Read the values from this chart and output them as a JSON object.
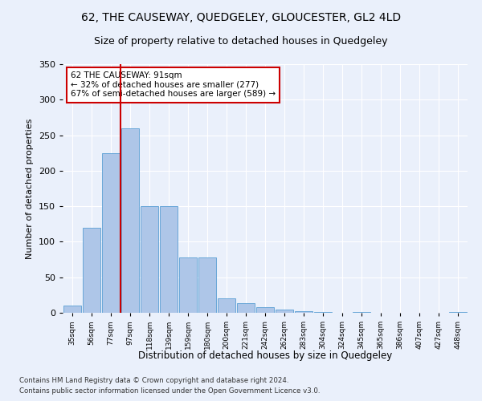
{
  "title1": "62, THE CAUSEWAY, QUEDGELEY, GLOUCESTER, GL2 4LD",
  "title2": "Size of property relative to detached houses in Quedgeley",
  "xlabel": "Distribution of detached houses by size in Quedgeley",
  "ylabel": "Number of detached properties",
  "annotation_title": "62 THE CAUSEWAY: 91sqm",
  "annotation_line1": "← 32% of detached houses are smaller (277)",
  "annotation_line2": "67% of semi-detached houses are larger (589) →",
  "footer1": "Contains HM Land Registry data © Crown copyright and database right 2024.",
  "footer2": "Contains public sector information licensed under the Open Government Licence v3.0.",
  "categories": [
    "35sqm",
    "56sqm",
    "77sqm",
    "97sqm",
    "118sqm",
    "139sqm",
    "159sqm",
    "180sqm",
    "200sqm",
    "221sqm",
    "242sqm",
    "262sqm",
    "283sqm",
    "304sqm",
    "324sqm",
    "345sqm",
    "365sqm",
    "386sqm",
    "407sqm",
    "427sqm",
    "448sqm"
  ],
  "values": [
    10,
    120,
    225,
    260,
    150,
    150,
    78,
    78,
    20,
    13,
    8,
    4,
    2,
    1,
    0,
    1,
    0,
    0,
    0,
    0,
    1
  ],
  "bar_color": "#aec6e8",
  "bar_edge_color": "#5a9fd4",
  "vline_x": 2.5,
  "vline_color": "#cc0000",
  "ylim": [
    0,
    350
  ],
  "yticks": [
    0,
    50,
    100,
    150,
    200,
    250,
    300,
    350
  ],
  "bg_color": "#eaf0fb",
  "grid_color": "#ffffff",
  "annotation_box_color": "#ffffff",
  "annotation_box_edge": "#cc0000",
  "title1_fontsize": 10,
  "title2_fontsize": 9
}
